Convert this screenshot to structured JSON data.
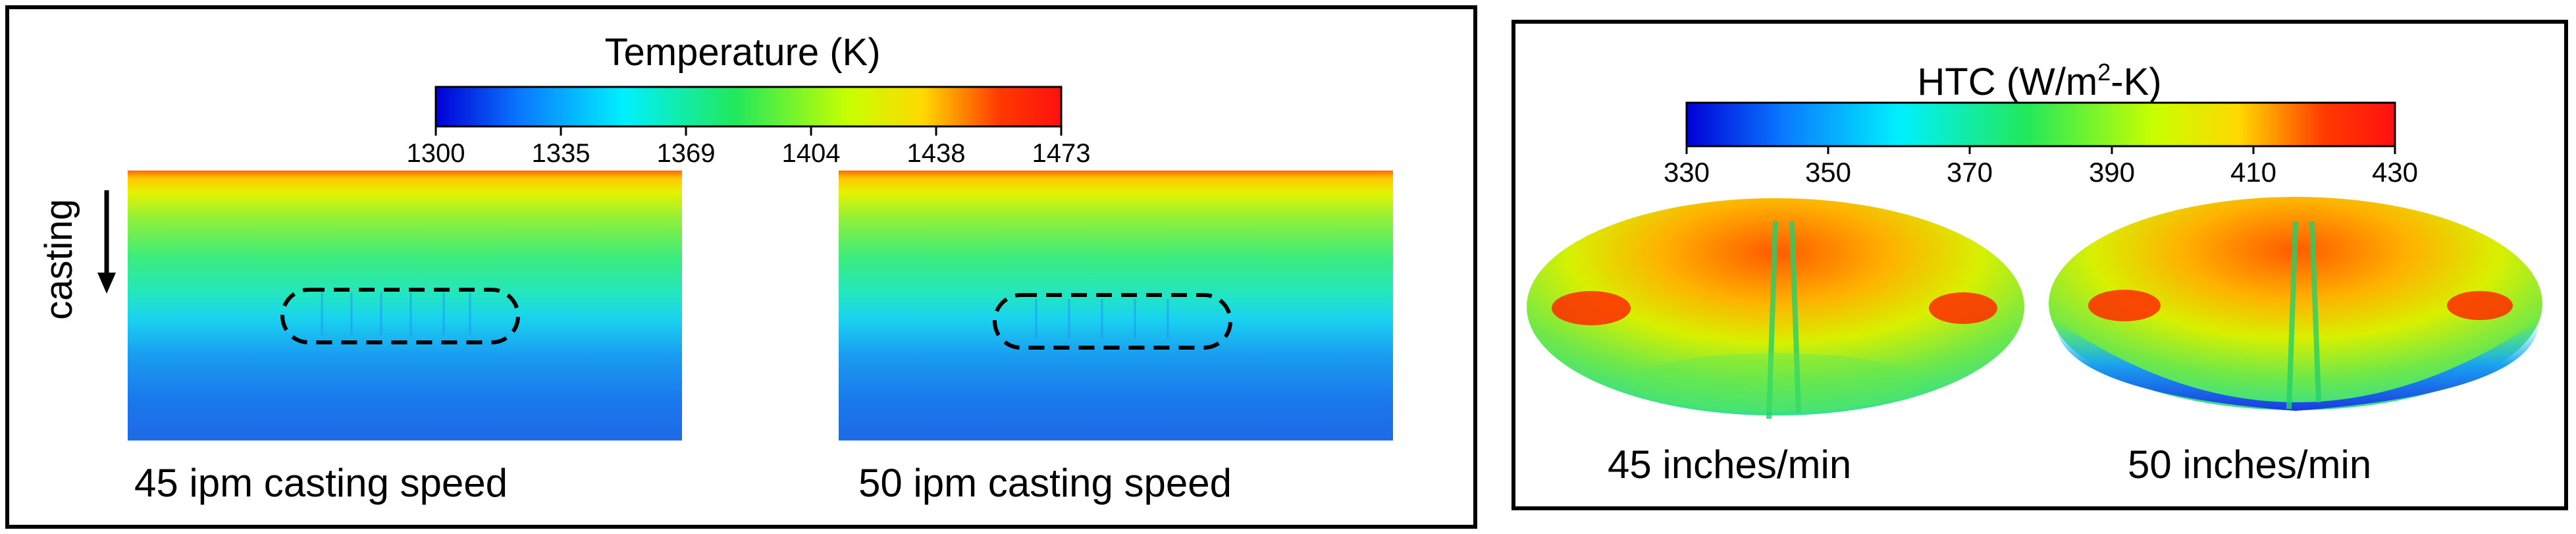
{
  "temperature_panel": {
    "colorbar": {
      "title": "Temperature (K)",
      "ticks": [
        "1300",
        "1335",
        "1369",
        "1404",
        "1438",
        "1473"
      ],
      "colors": [
        "#0000d8",
        "#0a7cff",
        "#00f0ff",
        "#22e85a",
        "#c8ff00",
        "#ffd800",
        "#ff3a00",
        "#ff1010"
      ]
    },
    "direction_label": "casting",
    "maps": [
      {
        "caption": "45 ipm casting speed"
      },
      {
        "caption": "50 ipm casting speed"
      }
    ]
  },
  "htc_panel": {
    "colorbar": {
      "title_prefix": "HTC (W/m",
      "title_superscript": "2",
      "title_suffix": "-K)",
      "ticks": [
        "330",
        "350",
        "370",
        "390",
        "410",
        "430"
      ],
      "colors": [
        "#0000d8",
        "#0a7cff",
        "#00f0ff",
        "#22e85a",
        "#c8ff00",
        "#ffd800",
        "#ff3a00",
        "#ff1010"
      ]
    },
    "maps": [
      {
        "caption": "45 inches/min"
      },
      {
        "caption": "50 inches/min"
      }
    ]
  }
}
